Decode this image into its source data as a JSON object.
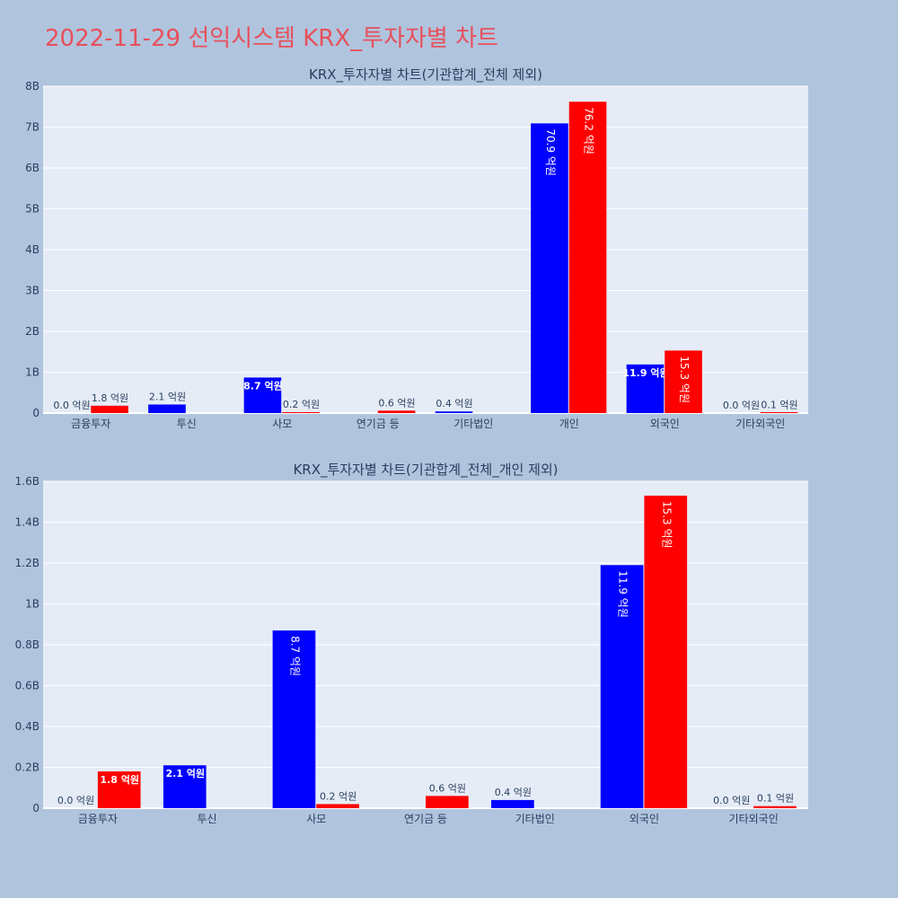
{
  "page_title": "2022-11-29 선익시스템 KRX_투자자별 차트",
  "colors": {
    "buy": "#0000ff",
    "sell": "#ff0000",
    "plot_bg": "#e5ecf6",
    "page_bg": "#b0c4de",
    "title": "#e8505b",
    "axis_text": "#2a3f5f"
  },
  "chart_data": [
    {
      "type": "bar",
      "title": "KRX_투자자별 차트(기관합계_전체 제외)",
      "categories": [
        "금융투자",
        "투신",
        "사모",
        "연기금 등",
        "기타법인",
        "개인",
        "외국인",
        "기타외국인"
      ],
      "ylim": [
        0,
        8
      ],
      "yticks": [
        "0",
        "1B",
        "2B",
        "3B",
        "4B",
        "5B",
        "6B",
        "7B",
        "8B"
      ],
      "series": [
        {
          "color": "#0000ff",
          "values": [
            0.0,
            0.21,
            0.87,
            null,
            0.04,
            7.09,
            1.19,
            0.0
          ],
          "labels": [
            "0.0 억원",
            "2.1 억원",
            "8.7 억원",
            "",
            "0.4 억원",
            "70.9 억원",
            "11.9 억원",
            "0.0 억원"
          ]
        },
        {
          "color": "#ff0000",
          "values": [
            0.18,
            null,
            0.02,
            0.06,
            null,
            7.62,
            1.53,
            0.01
          ],
          "labels": [
            "1.8 억원",
            "",
            "0.2 억원",
            "0.6 억원",
            "",
            "76.2 억원",
            "15.3 억원",
            "0.1 억원"
          ]
        }
      ],
      "grid": true
    },
    {
      "type": "bar",
      "title": "KRX_투자자별 차트(기관합계_전체_개인 제외)",
      "categories": [
        "금융투자",
        "투신",
        "사모",
        "연기금 등",
        "기타법인",
        "외국인",
        "기타외국인"
      ],
      "ylim": [
        0,
        1.6
      ],
      "yticks": [
        "0",
        "0.2B",
        "0.4B",
        "0.6B",
        "0.8B",
        "1B",
        "1.2B",
        "1.4B",
        "1.6B"
      ],
      "series": [
        {
          "color": "#0000ff",
          "values": [
            0.0,
            0.21,
            0.87,
            null,
            0.04,
            1.19,
            0.0
          ],
          "labels": [
            "0.0 억원",
            "2.1 억원",
            "8.7 억원",
            "",
            "0.4 억원",
            "11.9 억원",
            "0.0 억원"
          ]
        },
        {
          "color": "#ff0000",
          "values": [
            0.18,
            null,
            0.02,
            0.06,
            null,
            1.53,
            0.01
          ],
          "labels": [
            "1.8 억원",
            "",
            "0.2 억원",
            "0.6 억원",
            "",
            "15.3 억원",
            "0.1 억원"
          ]
        }
      ],
      "grid": true
    }
  ]
}
